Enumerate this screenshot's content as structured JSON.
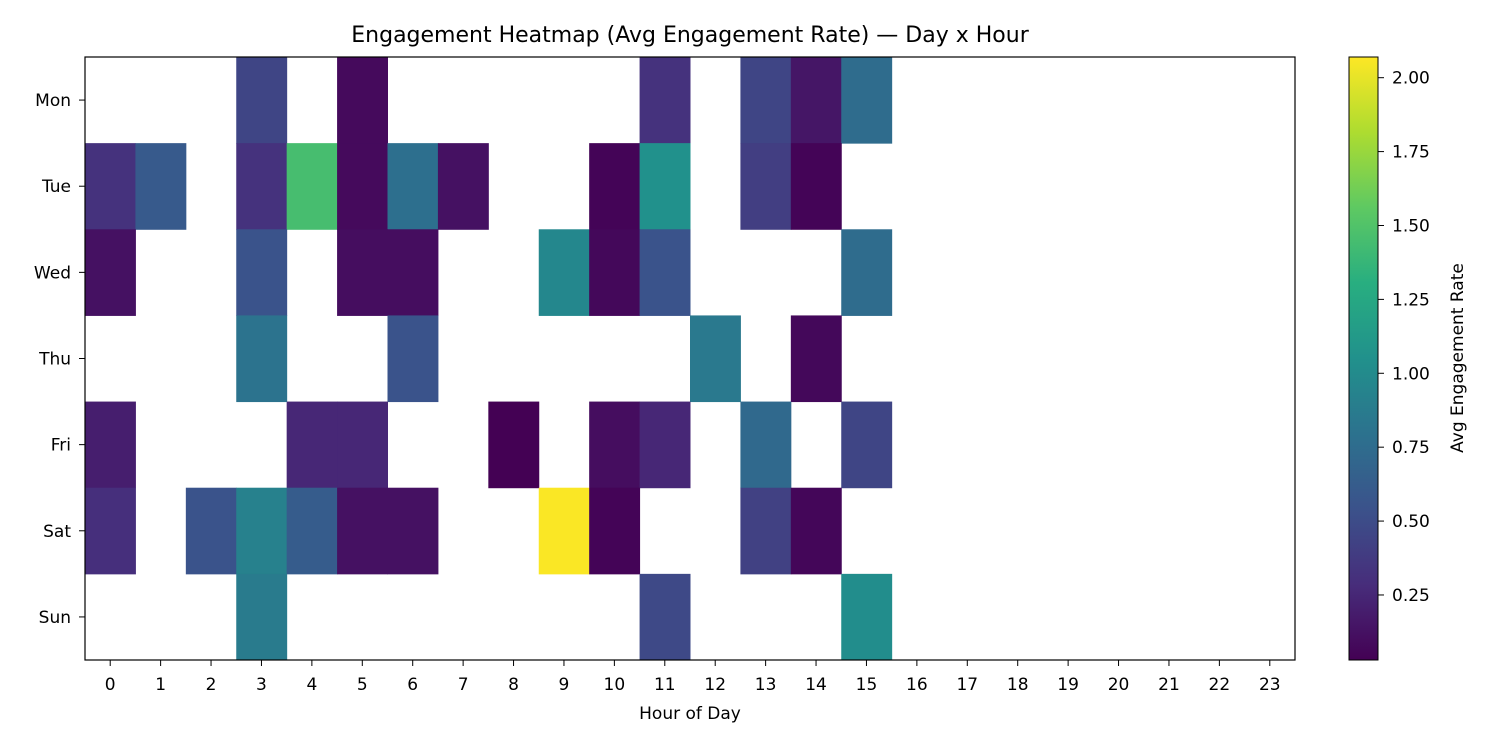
{
  "chart_data": {
    "type": "heatmap",
    "title": "Engagement Heatmap (Avg Engagement Rate) — Day x Hour",
    "xlabel": "Hour of Day",
    "ylabel": "",
    "x_categories": [
      "0",
      "1",
      "2",
      "3",
      "4",
      "5",
      "6",
      "7",
      "8",
      "9",
      "10",
      "11",
      "12",
      "13",
      "14",
      "15",
      "16",
      "17",
      "18",
      "19",
      "20",
      "21",
      "22",
      "23"
    ],
    "y_categories": [
      "Mon",
      "Tue",
      "Wed",
      "Thu",
      "Fri",
      "Sat",
      "Sun"
    ],
    "values": [
      [
        null,
        null,
        null,
        0.45,
        null,
        0.08,
        null,
        null,
        null,
        null,
        null,
        0.32,
        null,
        0.45,
        0.15,
        0.75,
        null,
        null,
        null,
        null,
        null,
        null,
        null,
        null
      ],
      [
        0.32,
        0.6,
        null,
        0.32,
        1.45,
        0.08,
        0.77,
        0.12,
        null,
        null,
        0.05,
        1.05,
        null,
        0.4,
        0.05,
        null,
        null,
        null,
        null,
        null,
        null,
        null,
        null,
        null
      ],
      [
        0.12,
        null,
        null,
        0.55,
        null,
        0.1,
        0.1,
        null,
        null,
        0.97,
        0.07,
        0.55,
        null,
        null,
        null,
        0.75,
        null,
        null,
        null,
        null,
        null,
        null,
        null,
        null
      ],
      [
        null,
        null,
        null,
        0.8,
        null,
        null,
        0.55,
        null,
        null,
        null,
        null,
        null,
        0.85,
        null,
        0.07,
        null,
        null,
        null,
        null,
        null,
        null,
        null,
        null,
        null
      ],
      [
        0.2,
        null,
        null,
        null,
        0.25,
        0.25,
        null,
        null,
        0.03,
        null,
        0.1,
        0.25,
        null,
        0.72,
        null,
        0.45,
        null,
        null,
        null,
        null,
        null,
        null,
        null,
        null
      ],
      [
        0.3,
        null,
        0.55,
        0.92,
        0.62,
        0.12,
        0.12,
        null,
        null,
        2.06,
        0.05,
        null,
        null,
        0.42,
        0.06,
        null,
        null,
        null,
        null,
        null,
        null,
        null,
        null,
        null
      ],
      [
        null,
        null,
        null,
        0.87,
        null,
        null,
        null,
        null,
        null,
        null,
        null,
        0.48,
        null,
        null,
        null,
        1.02,
        null,
        null,
        null,
        null,
        null,
        null,
        null,
        null
      ]
    ],
    "colormap": "viridis",
    "vmin": 0.03,
    "vmax": 2.07,
    "colorbar": {
      "label": "Avg Engagement Rate",
      "ticks": [
        0.25,
        0.5,
        0.75,
        1.0,
        1.25,
        1.5,
        1.75,
        2.0
      ],
      "tick_labels": [
        "0.25",
        "0.50",
        "0.75",
        "1.00",
        "1.25",
        "1.50",
        "1.75",
        "2.00"
      ]
    },
    "grid": false,
    "legend": "colorbar-right"
  }
}
